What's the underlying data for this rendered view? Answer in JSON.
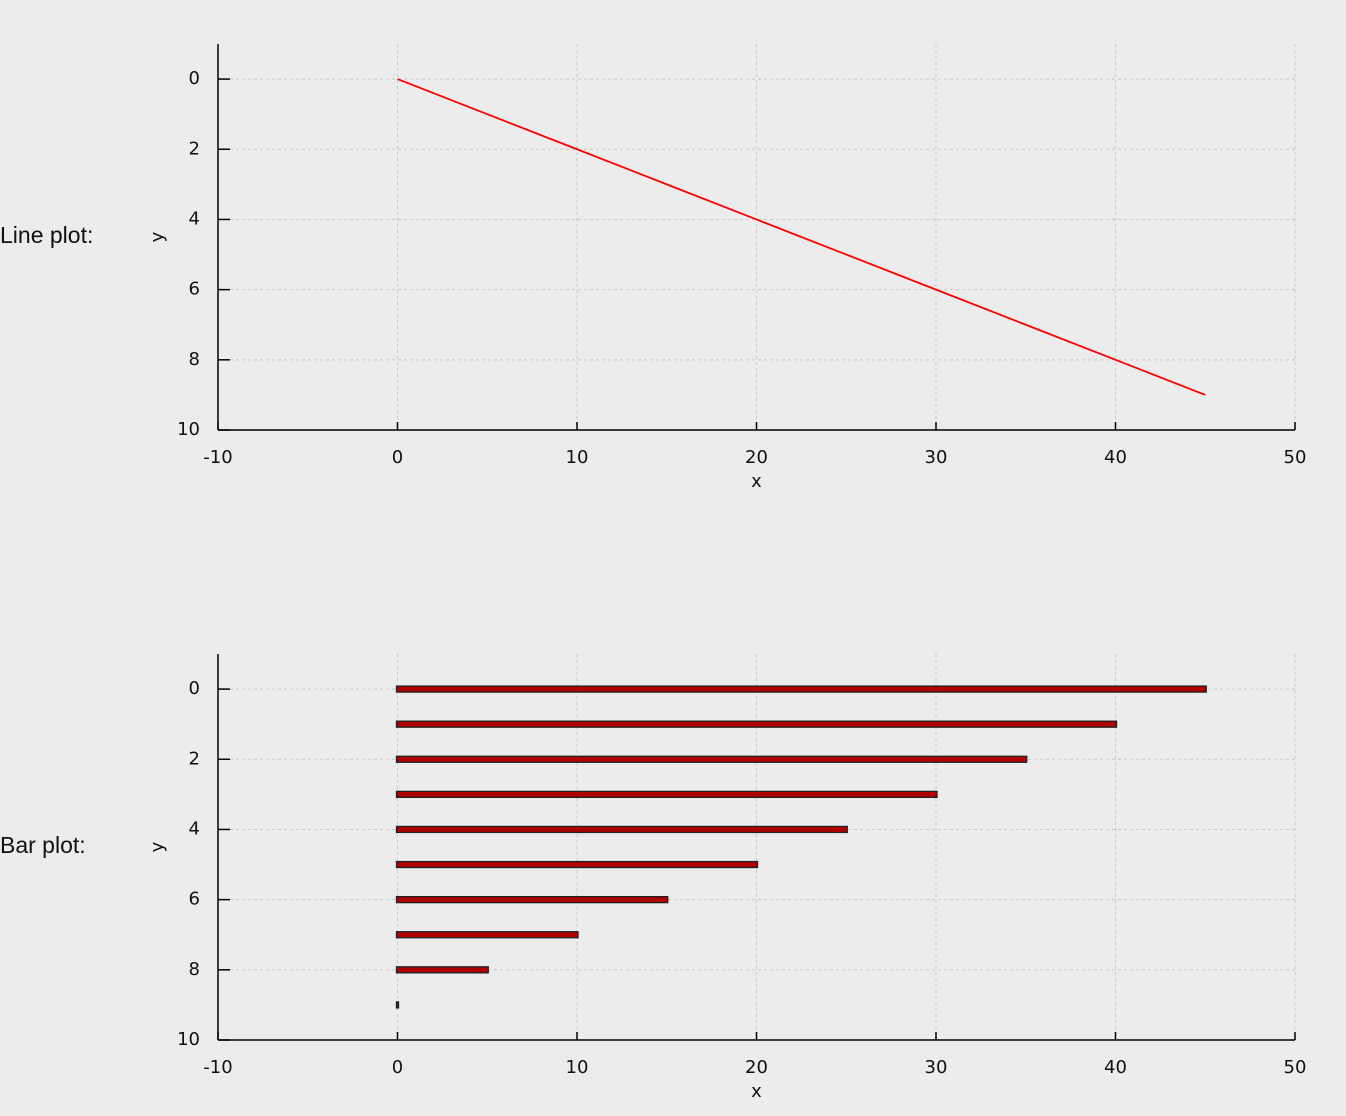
{
  "chart_data": [
    {
      "type": "line",
      "caption": "Line plot:",
      "xlabel": "x",
      "ylabel": "y",
      "x": [
        0,
        5,
        10,
        15,
        20,
        25,
        30,
        35,
        40,
        45
      ],
      "values": [
        0,
        1,
        2,
        3,
        4,
        5,
        6,
        7,
        8,
        9
      ],
      "color": "#ff0000",
      "xlim": [
        -10,
        50
      ],
      "xticks": [
        -10,
        0,
        10,
        20,
        30,
        40,
        50
      ],
      "ylim": [
        10,
        -1
      ],
      "yticks": [
        0,
        2,
        4,
        6,
        8,
        10
      ],
      "grid": true
    },
    {
      "type": "barh",
      "caption": "Bar plot:",
      "xlabel": "x",
      "ylabel": "y",
      "y": [
        0,
        1,
        2,
        3,
        4,
        5,
        6,
        7,
        8,
        9
      ],
      "values": [
        45,
        40,
        35,
        30,
        25,
        20,
        15,
        10,
        5,
        0
      ],
      "color": "#b00000",
      "xlim": [
        -10,
        50
      ],
      "xticks": [
        -10,
        0,
        10,
        20,
        30,
        40,
        50
      ],
      "ylim": [
        10,
        -1
      ],
      "yticks": [
        0,
        2,
        4,
        6,
        8,
        10
      ],
      "grid": true
    }
  ]
}
